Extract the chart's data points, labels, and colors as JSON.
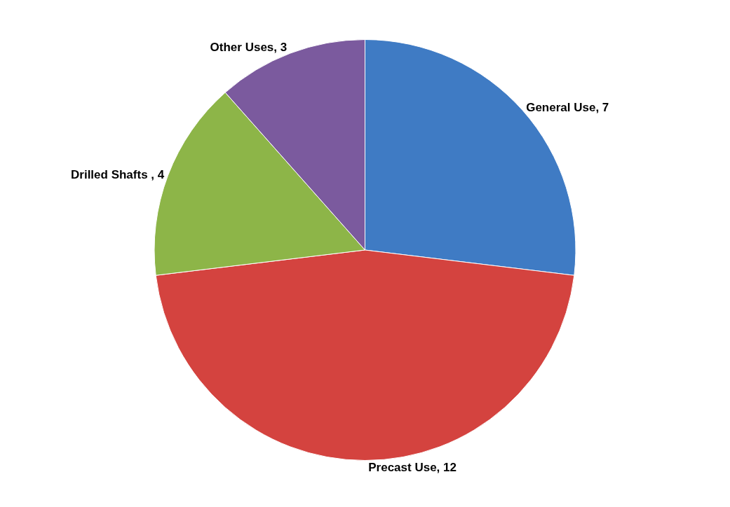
{
  "chart_data": {
    "type": "pie",
    "categories": [
      "General Use",
      "Precast Use",
      "Drilled Shafts ",
      "Other Uses"
    ],
    "values": [
      7,
      12,
      4,
      3
    ],
    "colors": [
      "#3f7bc4",
      "#d4433f",
      "#8db548",
      "#7b5a9e"
    ],
    "value_labels": [
      ", 7",
      ", 12",
      ", 4",
      ", 3"
    ],
    "legend": false
  }
}
